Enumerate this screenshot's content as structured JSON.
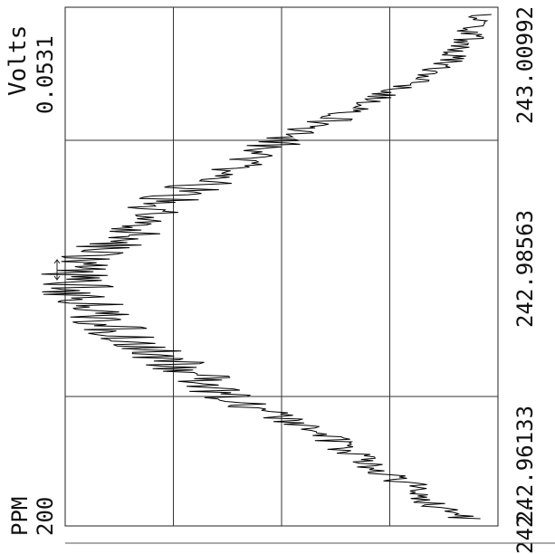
{
  "chart_data": {
    "type": "line",
    "x_axis_label": "PPM",
    "x_axis_value": "200",
    "y_axis_label": "Volts",
    "y_axis_value": "0.0531",
    "tick_labels": [
      "242.96133",
      "242.98563",
      "243.00992"
    ],
    "xlabel_bottom_left": "242.",
    "x": [
      242.948,
      242.95,
      242.953,
      242.955,
      242.958,
      242.96,
      242.962,
      242.964,
      242.966,
      242.968,
      242.97,
      242.972,
      242.974,
      242.976,
      242.978,
      242.98,
      242.982,
      242.984,
      242.986,
      242.988,
      242.99,
      242.992,
      242.994,
      242.996,
      242.998,
      243.0,
      243.002,
      243.004,
      243.006,
      243.008,
      243.01,
      243.012
    ],
    "y": [
      0.004,
      0.008,
      0.012,
      0.016,
      0.021,
      0.026,
      0.03,
      0.035,
      0.037,
      0.041,
      0.045,
      0.048,
      0.05,
      0.052,
      0.053,
      0.052,
      0.049,
      0.046,
      0.044,
      0.042,
      0.038,
      0.034,
      0.03,
      0.027,
      0.022,
      0.017,
      0.013,
      0.009,
      0.006,
      0.004,
      0.003,
      0.002
    ],
    "grid": true,
    "orientation": "rotated-90"
  }
}
